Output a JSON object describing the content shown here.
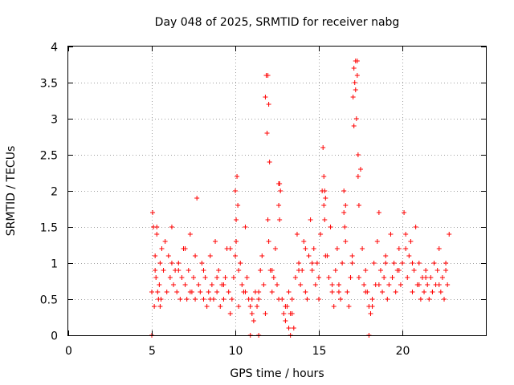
{
  "chart_data": {
    "type": "scatter",
    "title": "Day 048 of 2025, SRMTID for receiver nabg",
    "xlabel": "GPS time / hours",
    "ylabel": "SRMTID / TECUs",
    "xlim": [
      0,
      25
    ],
    "ylim": [
      0,
      4
    ],
    "xticks": [
      0,
      5,
      10,
      15,
      20
    ],
    "xtick_labels": [
      "0",
      "5",
      "10",
      "15",
      "20"
    ],
    "yticks": [
      0,
      0.5,
      1,
      1.5,
      2,
      2.5,
      3,
      3.5,
      4
    ],
    "ytick_labels": [
      "0",
      "0.5",
      "1",
      "1.5",
      "2",
      "2.5",
      "3",
      "3.5",
      "4"
    ],
    "grid": true,
    "marker": "plus",
    "series": [
      {
        "name": "SRMTID",
        "color": "#ff0000",
        "x": [
          5.0,
          5.05,
          5.1,
          5.15,
          5.2,
          5.25,
          5.3,
          5.35,
          5.4,
          5.45,
          5.5,
          5.55,
          5.6,
          5.7,
          5.8,
          5.9,
          6.0,
          6.1,
          6.2,
          6.3,
          6.4,
          6.5,
          6.6,
          6.7,
          6.8,
          6.9,
          7.0,
          7.1,
          7.2,
          7.3,
          7.4,
          7.5,
          7.6,
          7.7,
          7.8,
          7.9,
          8.0,
          8.1,
          8.2,
          8.3,
          8.4,
          8.5,
          8.6,
          8.7,
          8.8,
          8.9,
          9.0,
          9.1,
          9.2,
          9.3,
          9.4,
          9.5,
          9.6,
          9.7,
          9.8,
          9.9,
          10.0,
          10.05,
          10.1,
          10.15,
          10.2,
          10.3,
          10.4,
          10.5,
          10.6,
          10.7,
          10.8,
          10.9,
          11.0,
          11.1,
          11.2,
          11.3,
          11.4,
          11.5,
          11.6,
          11.7,
          11.8,
          11.85,
          11.9,
          11.95,
          12.0,
          12.1,
          12.2,
          12.3,
          12.4,
          12.5,
          12.6,
          12.65,
          12.7,
          12.8,
          12.9,
          13.0,
          13.1,
          13.2,
          13.3,
          13.4,
          13.5,
          13.6,
          13.7,
          13.8,
          13.9,
          14.0,
          14.1,
          14.2,
          14.3,
          14.4,
          14.5,
          14.6,
          14.7,
          14.8,
          14.9,
          15.0,
          15.1,
          15.2,
          15.25,
          15.3,
          15.35,
          15.4,
          15.5,
          15.6,
          15.7,
          15.8,
          15.9,
          16.0,
          16.1,
          16.2,
          16.3,
          16.4,
          16.5,
          16.6,
          16.7,
          16.8,
          16.9,
          17.0,
          17.05,
          17.1,
          17.15,
          17.2,
          17.25,
          17.3,
          17.35,
          17.4,
          17.5,
          17.6,
          17.7,
          17.8,
          17.9,
          18.0,
          18.1,
          18.2,
          18.3,
          18.4,
          18.5,
          18.6,
          18.7,
          18.8,
          18.9,
          19.0,
          19.1,
          19.2,
          19.3,
          19.4,
          19.5,
          19.6,
          19.7,
          19.8,
          19.9,
          20.0,
          20.1,
          20.2,
          20.3,
          20.4,
          20.5,
          20.6,
          20.7,
          20.8,
          20.9,
          21.0,
          21.1,
          21.2,
          21.3,
          21.4,
          21.5,
          21.6,
          21.7,
          21.8,
          21.9,
          22.0,
          22.1,
          22.2,
          22.3,
          22.4,
          22.5,
          22.6,
          22.7,
          22.8,
          5.2,
          5.3,
          5.5,
          6.2,
          6.6,
          7.0,
          7.3,
          7.6,
          8.1,
          8.5,
          8.9,
          9.3,
          9.7,
          10.2,
          10.6,
          11.0,
          11.4,
          11.8,
          12.2,
          12.6,
          13.0,
          13.4,
          13.8,
          14.2,
          14.6,
          15.0,
          15.4,
          15.8,
          16.2,
          16.6,
          17.0,
          17.4,
          17.8,
          18.2,
          18.6,
          19.0,
          19.4,
          19.8,
          20.2,
          20.6,
          21.0,
          21.4,
          21.8,
          22.2,
          22.6,
          11.95,
          12.0,
          12.05,
          15.3,
          15.35,
          17.1,
          17.2,
          17.3,
          17.35,
          12.6,
          12.65,
          10.0,
          10.05,
          16.5,
          16.55,
          5.0,
          10.9,
          11.4,
          13.2,
          13.3,
          18.0
        ],
        "y": [
          0.6,
          1.7,
          1.5,
          0.4,
          1.1,
          0.8,
          1.4,
          0.6,
          0.5,
          0.7,
          1.0,
          0.5,
          1.2,
          0.9,
          1.3,
          0.6,
          1.1,
          0.8,
          1.5,
          0.7,
          0.9,
          0.6,
          1.0,
          0.5,
          0.8,
          1.2,
          0.7,
          0.5,
          0.9,
          1.4,
          0.6,
          0.8,
          0.5,
          1.9,
          0.7,
          0.6,
          1.0,
          0.5,
          0.8,
          0.4,
          0.6,
          1.1,
          0.7,
          0.5,
          1.3,
          0.6,
          0.9,
          0.4,
          0.7,
          0.5,
          0.8,
          1.2,
          0.6,
          0.3,
          0.5,
          0.8,
          1.1,
          1.3,
          2.2,
          1.8,
          0.9,
          1.0,
          0.7,
          0.6,
          1.5,
          0.8,
          0.5,
          0.4,
          0.3,
          0.2,
          0.6,
          0.4,
          0.5,
          0.9,
          1.1,
          0.7,
          3.3,
          3.6,
          2.8,
          1.6,
          1.3,
          0.9,
          0.6,
          0.8,
          1.2,
          0.7,
          1.8,
          2.1,
          2.0,
          0.5,
          0.3,
          0.2,
          0.4,
          0.6,
          0.3,
          0.5,
          0.1,
          0.8,
          1.4,
          1.0,
          0.7,
          0.9,
          1.3,
          0.6,
          0.5,
          1.1,
          1.6,
          0.9,
          1.2,
          0.7,
          1.0,
          0.5,
          1.4,
          2.0,
          2.6,
          1.8,
          1.6,
          1.9,
          1.1,
          0.8,
          1.5,
          0.6,
          0.4,
          0.9,
          1.2,
          0.7,
          0.5,
          1.0,
          2.0,
          1.8,
          0.6,
          0.4,
          0.8,
          1.1,
          3.3,
          2.9,
          3.5,
          3.8,
          3.0,
          3.6,
          2.5,
          1.8,
          2.3,
          1.2,
          0.7,
          0.9,
          0.6,
          0.4,
          0.3,
          0.5,
          1.0,
          0.7,
          1.3,
          1.7,
          0.9,
          0.6,
          0.8,
          1.1,
          0.5,
          0.7,
          1.4,
          0.8,
          1.0,
          0.6,
          0.9,
          1.2,
          0.7,
          1.0,
          1.7,
          1.4,
          0.8,
          1.1,
          1.3,
          0.6,
          0.9,
          1.5,
          0.7,
          1.0,
          0.5,
          0.8,
          0.6,
          0.9,
          0.7,
          0.5,
          0.8,
          0.6,
          1.0,
          0.7,
          0.9,
          1.2,
          0.6,
          0.8,
          0.5,
          1.0,
          0.7,
          1.4,
          0.9,
          1.5,
          0.4,
          1.0,
          0.9,
          1.2,
          0.6,
          1.1,
          0.9,
          0.5,
          0.8,
          0.7,
          1.2,
          0.4,
          0.6,
          0.5,
          0.6,
          0.3,
          0.9,
          0.5,
          0.4,
          0.3,
          0.9,
          1.2,
          1.0,
          0.8,
          1.1,
          0.7,
          0.6,
          1.3,
          1.0,
          0.8,
          0.6,
          0.4,
          0.7,
          1.0,
          0.8,
          0.9,
          1.2,
          1.0,
          0.7,
          0.8,
          0.6,
          0.7,
          0.9,
          3.6,
          3.2,
          2.4,
          2.2,
          2.0,
          3.7,
          3.4,
          3.8,
          2.2,
          2.1,
          1.6,
          2.0,
          1.6,
          1.7,
          1.5,
          0.0,
          0.0,
          0.0,
          0.1,
          0.0,
          0.0
        ]
      }
    ]
  }
}
